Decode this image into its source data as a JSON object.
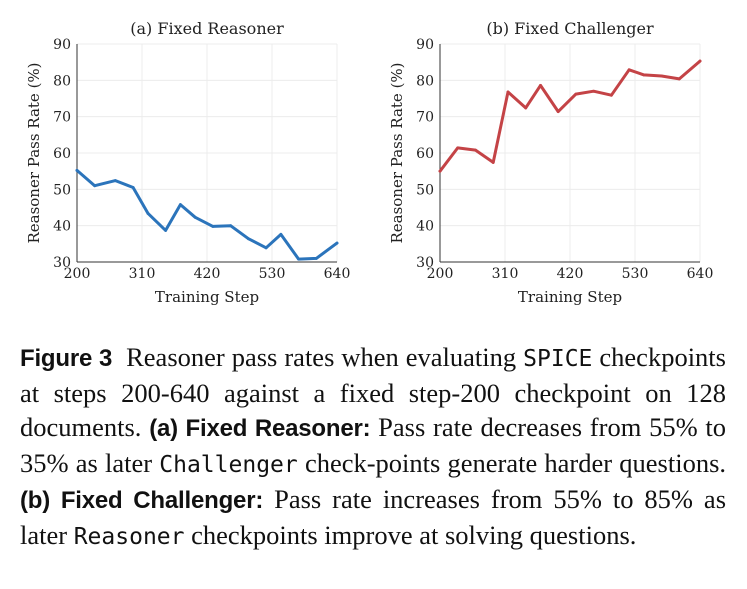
{
  "chart_data": [
    {
      "type": "line",
      "title": "(a) Fixed Reasoner",
      "xlabel": "Training Step",
      "ylabel": "Reasoner Pass Rate (%)",
      "xlim": [
        200,
        640
      ],
      "ylim": [
        30,
        90
      ],
      "xticks": [
        200,
        310,
        420,
        530,
        640
      ],
      "yticks": [
        30,
        40,
        50,
        60,
        70,
        80,
        90
      ],
      "grid": true,
      "color": "#2b74bb",
      "x": [
        200,
        230,
        265,
        295,
        320,
        350,
        375,
        400,
        430,
        460,
        490,
        520,
        545,
        575,
        605,
        640
      ],
      "y": [
        55.2,
        51.0,
        52.4,
        50.5,
        43.4,
        38.7,
        45.8,
        42.3,
        39.8,
        40.0,
        36.4,
        33.9,
        37.6,
        30.8,
        31.0,
        35.2
      ]
    },
    {
      "type": "line",
      "title": "(b) Fixed Challenger",
      "xlabel": "Training Step",
      "ylabel": "Reasoner Pass Rate (%)",
      "xlim": [
        200,
        640
      ],
      "ylim": [
        30,
        90
      ],
      "xticks": [
        200,
        310,
        420,
        530,
        640
      ],
      "yticks": [
        30,
        40,
        50,
        60,
        70,
        80,
        90
      ],
      "grid": true,
      "color": "#c44346",
      "x": [
        200,
        230,
        260,
        290,
        315,
        345,
        370,
        400,
        430,
        460,
        490,
        520,
        545,
        575,
        605,
        640
      ],
      "y": [
        55.0,
        61.4,
        60.8,
        57.4,
        76.8,
        72.4,
        78.6,
        71.4,
        76.2,
        77.0,
        75.9,
        82.9,
        81.5,
        81.2,
        80.4,
        85.3
      ]
    }
  ],
  "caption": {
    "figure_label": "Figure 3",
    "intro": "Reasoner pass rates when evaluating",
    "spice": "SPICE",
    "intro2": "checkpoints at steps 200-640 against a fixed step-200 checkpoint on 128 documents.",
    "a_label": "(a) Fixed Reasoner:",
    "a_text": "Pass rate decreases from 55% to 35% as later",
    "a_term": "Challenger",
    "a_text2": "check-points generate harder questions.",
    "b_label": "(b) Fixed Challenger:",
    "b_text": "Pass rate increases from 55% to 85% as later",
    "b_term": "Reasoner",
    "b_text2": "checkpoints improve at solving questions."
  }
}
